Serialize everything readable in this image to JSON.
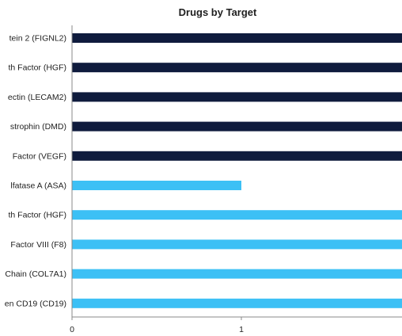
{
  "chart_data": {
    "type": "bar",
    "orientation": "horizontal",
    "title": "Drugs by Target",
    "xlabel": "",
    "ylabel": "",
    "xlim": [
      0,
      2
    ],
    "x_ticks": [
      "0",
      "1"
    ],
    "grid": false,
    "categories": [
      "tein 2 (FIGNL2)",
      "th Factor (HGF)",
      "ectin (LECAM2)",
      "strophin (DMD)",
      "Factor (VEGF)",
      "lfatase A (ASA)",
      "th Factor (HGF)",
      "Factor VIII (F8)",
      "Chain (COL7A1)",
      "en CD19 (CD19)"
    ],
    "values": [
      2,
      2,
      2,
      2,
      2,
      1,
      2,
      2,
      2,
      2
    ],
    "bar_colors": [
      "#0f1b3d",
      "#0f1b3d",
      "#0f1b3d",
      "#0f1b3d",
      "#0f1b3d",
      "#3cc0f5",
      "#3cc0f5",
      "#3cc0f5",
      "#3cc0f5",
      "#3cc0f5"
    ]
  }
}
